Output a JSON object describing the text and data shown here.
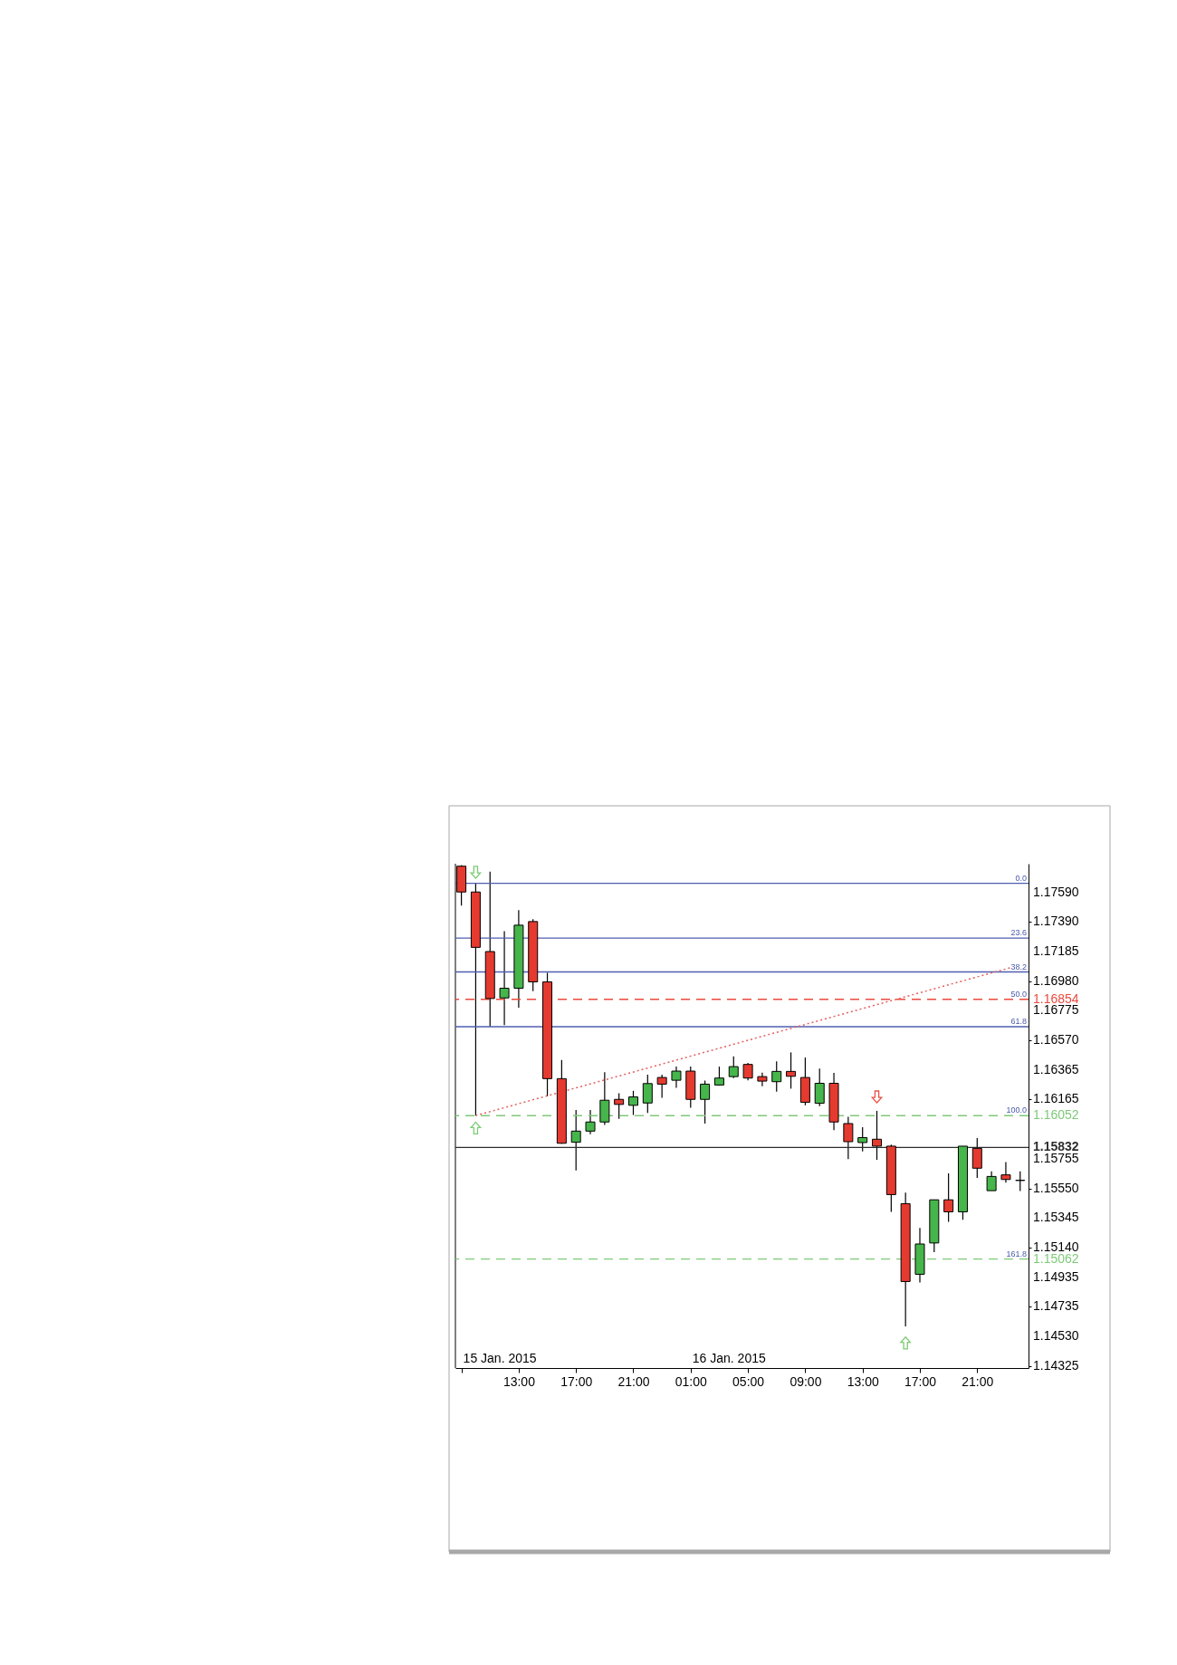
{
  "chart_data": {
    "type": "candlestick",
    "x": [
      "2015-01-15T09:00",
      "2015-01-15T10:00",
      "2015-01-15T11:00",
      "2015-01-15T12:00",
      "2015-01-15T13:00",
      "2015-01-15T14:00",
      "2015-01-15T15:00",
      "2015-01-15T16:00",
      "2015-01-15T17:00",
      "2015-01-15T18:00",
      "2015-01-15T19:00",
      "2015-01-15T20:00",
      "2015-01-15T21:00",
      "2015-01-15T22:00",
      "2015-01-15T23:00",
      "2015-01-16T00:00",
      "2015-01-16T01:00",
      "2015-01-16T02:00",
      "2015-01-16T03:00",
      "2015-01-16T04:00",
      "2015-01-16T05:00",
      "2015-01-16T06:00",
      "2015-01-16T07:00",
      "2015-01-16T08:00",
      "2015-01-16T09:00",
      "2015-01-16T10:00",
      "2015-01-16T11:00",
      "2015-01-16T12:00",
      "2015-01-16T13:00",
      "2015-01-16T14:00",
      "2015-01-16T15:00",
      "2015-01-16T16:00",
      "2015-01-16T17:00",
      "2015-01-16T18:00",
      "2015-01-16T19:00",
      "2015-01-16T20:00",
      "2015-01-16T21:00",
      "2015-01-16T22:00",
      "2015-01-16T23:00",
      "2015-01-17T00:00"
    ],
    "ohlc": [
      [
        1.17773,
        1.1778,
        1.17501,
        1.17595
      ],
      [
        1.17595,
        1.17656,
        1.16052,
        1.17213
      ],
      [
        1.17184,
        1.17735,
        1.16666,
        1.1686
      ],
      [
        1.16864,
        1.17324,
        1.16676,
        1.16931
      ],
      [
        1.16931,
        1.1747,
        1.16797,
        1.17366
      ],
      [
        1.17391,
        1.17407,
        1.1691,
        1.16975
      ],
      [
        1.16975,
        1.17038,
        1.16185,
        1.16307
      ],
      [
        1.16307,
        1.16436,
        1.15858,
        1.15861
      ],
      [
        1.15868,
        1.16091,
        1.15674,
        1.15945
      ],
      [
        1.15945,
        1.16091,
        1.15924,
        1.16008
      ],
      [
        1.16008,
        1.16352,
        1.15987,
        1.16158
      ],
      [
        1.16164,
        1.16206,
        1.16029,
        1.16129
      ],
      [
        1.16123,
        1.16223,
        1.16056,
        1.16181
      ],
      [
        1.16139,
        1.16335,
        1.1607,
        1.16273
      ],
      [
        1.16315,
        1.16335,
        1.16175,
        1.16269
      ],
      [
        1.16296,
        1.1639,
        1.16244,
        1.16359
      ],
      [
        1.16359,
        1.1639,
        1.16106,
        1.16164
      ],
      [
        1.16164,
        1.16294,
        1.15997,
        1.16269
      ],
      [
        1.16263,
        1.1639,
        1.16259,
        1.16311
      ],
      [
        1.16321,
        1.16461,
        1.16311,
        1.1639
      ],
      [
        1.16405,
        1.16415,
        1.16296,
        1.16311
      ],
      [
        1.16321,
        1.16348,
        1.16254,
        1.1629
      ],
      [
        1.16286,
        1.16426,
        1.16217,
        1.16357
      ],
      [
        1.16357,
        1.16488,
        1.16238,
        1.16323
      ],
      [
        1.16315,
        1.16453,
        1.16123,
        1.16144
      ],
      [
        1.16137,
        1.16377,
        1.16117,
        1.16275
      ],
      [
        1.16275,
        1.16346,
        1.15951,
        1.16008
      ],
      [
        1.15997,
        1.16043,
        1.15751,
        1.15872
      ],
      [
        1.15866,
        1.15972,
        1.15805,
        1.159
      ],
      [
        1.15889,
        1.16085,
        1.15747,
        1.15841
      ],
      [
        1.15841,
        1.15851,
        1.15388,
        1.15507
      ],
      [
        1.15444,
        1.15521,
        1.14598,
        1.14907
      ],
      [
        1.14957,
        1.15277,
        1.14901,
        1.15166
      ],
      [
        1.15173,
        1.15471,
        1.1511,
        1.15471
      ],
      [
        1.15471,
        1.15653,
        1.15319,
        1.15388
      ],
      [
        1.15388,
        1.15841,
        1.15333,
        1.15841
      ],
      [
        1.15826,
        1.15897,
        1.15622,
        1.15689
      ],
      [
        1.15534,
        1.15668,
        1.15534,
        1.15632
      ],
      [
        1.15643,
        1.15732,
        1.1559,
        1.15611
      ],
      [
        1.15605,
        1.15668,
        1.15532,
        1.15605
      ]
    ],
    "colors": [
      "#e53a2f",
      "#e53a2f",
      "#e53a2f",
      "#46b54b",
      "#46b54b",
      "#e53a2f",
      "#e53a2f",
      "#e53a2f",
      "#46b54b",
      "#46b54b",
      "#46b54b",
      "#e53a2f",
      "#46b54b",
      "#46b54b",
      "#e53a2f",
      "#46b54b",
      "#e53a2f",
      "#46b54b",
      "#46b54b",
      "#46b54b",
      "#e53a2f",
      "#e53a2f",
      "#46b54b",
      "#e53a2f",
      "#e53a2f",
      "#46b54b",
      "#e53a2f",
      "#e53a2f",
      "#46b54b",
      "#e53a2f",
      "#e53a2f",
      "#e53a2f",
      "#46b54b",
      "#46b54b",
      "#e53a2f",
      "#46b54b",
      "#e53a2f",
      "#46b54b",
      "#e53a2f",
      "#000000"
    ],
    "xlim": [
      "2015-01-15T08:35",
      "2015-01-17T00:35"
    ],
    "ylim": [
      1.1431,
      1.1779
    ],
    "xticks": [
      {
        "value": "2015-01-15T09:00",
        "label": null
      },
      {
        "value": "2015-01-15T13:00",
        "label": "13:00"
      },
      {
        "value": "2015-01-15T17:00",
        "label": "17:00"
      },
      {
        "value": "2015-01-15T21:00",
        "label": "21:00"
      },
      {
        "value": "2015-01-16T01:00",
        "label": "01:00"
      },
      {
        "value": "2015-01-16T05:00",
        "label": "05:00"
      },
      {
        "value": "2015-01-16T09:00",
        "label": "09:00"
      },
      {
        "value": "2015-01-16T13:00",
        "label": "13:00"
      },
      {
        "value": "2015-01-16T17:00",
        "label": "17:00"
      },
      {
        "value": "2015-01-16T21:00",
        "label": "21:00"
      }
    ],
    "yticks": [
      {
        "value": 1.1759,
        "label": "1.17590"
      },
      {
        "value": 1.1739,
        "label": "1.17390"
      },
      1.17185,
      {
        "value": 1.1698,
        "label": "1.16980"
      },
      1.16775,
      {
        "value": 1.1657,
        "label": "1.16570"
      },
      1.16365,
      1.16165,
      1.15755,
      {
        "value": 1.1555,
        "label": "1.15550"
      },
      1.15345,
      {
        "value": 1.1514,
        "label": "1.15140"
      },
      1.14935,
      1.14735,
      {
        "value": 1.1453,
        "label": "1.14530"
      },
      1.14325
    ],
    "ref_lines": [
      {
        "axis": "y",
        "value": 1.17655,
        "color": "#4f5fb0"
      },
      {
        "axis": "y",
        "value": 1.17277,
        "color": "#4f5fb0"
      },
      {
        "axis": "y",
        "value": 1.17043,
        "color": "#4f5fb0"
      },
      {
        "axis": "y",
        "value": 1.16854,
        "label": "1.16854",
        "color": "#ec4a3e",
        "line_style": "dashed"
      },
      {
        "axis": "y",
        "value": 1.16665,
        "color": "#4f5fb0"
      },
      {
        "axis": "y",
        "value": 1.16052,
        "label": "1.16052",
        "color": "#7fc978",
        "line_style": "dashed"
      },
      {
        "axis": "y",
        "value": 1.15832,
        "label": "1.15832",
        "color": "#2e2e2e"
      },
      {
        "axis": "y",
        "value": 1.15062,
        "label": "1.15062",
        "color": "#7fc978",
        "line_style": "dashed"
      }
    ],
    "series": [
      {
        "type": "line",
        "color": "#e46060",
        "line_style": "dotted",
        "x": [
          "2015-01-15T10:00",
          "2015-01-16T23:20"
        ],
        "values": [
          1.16052,
          1.17073
        ]
      },
      {
        "type": "scatter",
        "color": "#7dcc74",
        "marker": "triangle",
        "x": [
          "2015-01-15T10:00",
          "2015-01-15T10:00",
          "2015-01-16T16:00"
        ],
        "values": [
          1.17731,
          1.15966,
          1.14483
        ]
      },
      {
        "type": "scatter",
        "color": "#ea5048",
        "marker": "triangle",
        "x": [
          "2015-01-16T14:00"
        ],
        "values": [
          1.16181
        ]
      }
    ],
    "annotations": [
      "15 Jan. 2015",
      "16 Jan. 2015",
      {
        "text": "0.0",
        "x": "2015-01-17T00:35",
        "y": 1.17655
      },
      {
        "text": "23.6",
        "x": "2015-01-17T00:35",
        "y": 1.17277
      },
      {
        "text": "38.2",
        "x": "2015-01-17T00:35",
        "y": 1.17043
      },
      {
        "text": "50.0",
        "x": "2015-01-17T00:35",
        "y": 1.16854
      },
      {
        "text": "61.8",
        "x": "2015-01-17T00:35",
        "y": 1.16665
      },
      {
        "text": "100.0",
        "x": "2015-01-17T00:35",
        "y": 1.16052
      },
      {
        "text": "161.8",
        "x": "2015-01-17T00:35",
        "y": 1.15062
      }
    ]
  }
}
